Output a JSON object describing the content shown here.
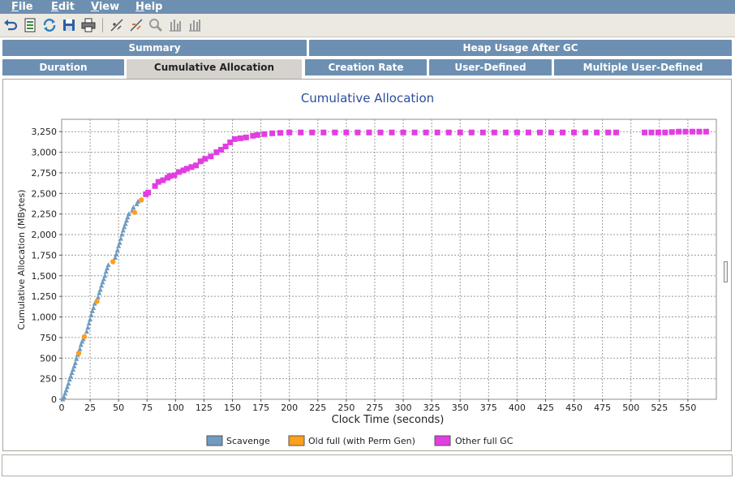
{
  "menu": [
    {
      "label": "File",
      "key": "F",
      "rest": "ile"
    },
    {
      "label": "Edit",
      "key": "E",
      "rest": "dit"
    },
    {
      "label": "View",
      "key": "V",
      "rest": "iew"
    },
    {
      "label": "Help",
      "key": "H",
      "rest": "elp"
    }
  ],
  "toolbar_icons": [
    "undo-icon",
    "export-icon",
    "refresh-icon",
    "save-icon",
    "print-icon",
    "zoom-in-tool-icon",
    "zoom-out-tool-icon",
    "magnifier-icon",
    "bar-chart-icon",
    "bar-chart-alt-icon"
  ],
  "tabs": {
    "row1": [
      "Summary",
      "Heap Usage After GC"
    ],
    "row2": [
      "Duration",
      "Cumulative Allocation",
      "Creation Rate",
      "User-Defined",
      "Multiple User-Defined"
    ],
    "active": "Cumulative Allocation"
  },
  "chart_data": {
    "type": "scatter",
    "title": "Cumulative Allocation",
    "xlabel": "Clock Time  (seconds)",
    "ylabel": "Cumulative Allocation (MBytes)",
    "xlim": [
      0,
      575
    ],
    "ylim": [
      0,
      3400
    ],
    "xticks": [
      0,
      25,
      50,
      75,
      100,
      125,
      150,
      175,
      200,
      225,
      250,
      275,
      300,
      325,
      350,
      375,
      400,
      425,
      450,
      475,
      500,
      525,
      550
    ],
    "yticks": [
      0,
      250,
      500,
      750,
      1000,
      1250,
      1500,
      1750,
      2000,
      2250,
      2500,
      2750,
      3000,
      3250
    ],
    "ytick_labels": [
      "0",
      "250",
      "500",
      "750",
      "1,000",
      "1,250",
      "1,500",
      "1,750",
      "2,000",
      "2,250",
      "2,500",
      "2,750",
      "3,000",
      "3,250"
    ],
    "grid": true,
    "legend_position": "bottom",
    "series": [
      {
        "name": "Scavenge",
        "color": "#6f9cc0",
        "marker": "triangle",
        "points": [
          [
            1,
            0
          ],
          [
            2,
            30
          ],
          [
            3,
            70
          ],
          [
            4,
            110
          ],
          [
            5,
            150
          ],
          [
            6,
            190
          ],
          [
            7,
            240
          ],
          [
            8,
            280
          ],
          [
            9,
            320
          ],
          [
            10,
            360
          ],
          [
            11,
            400
          ],
          [
            12,
            440
          ],
          [
            13,
            490
          ],
          [
            14,
            540
          ],
          [
            16,
            610
          ],
          [
            17,
            660
          ],
          [
            18,
            700
          ],
          [
            19,
            730
          ],
          [
            22,
            820
          ],
          [
            23,
            870
          ],
          [
            24,
            920
          ],
          [
            25,
            970
          ],
          [
            26,
            1020
          ],
          [
            27,
            1070
          ],
          [
            28,
            1110
          ],
          [
            29,
            1160
          ],
          [
            32,
            1240
          ],
          [
            33,
            1290
          ],
          [
            34,
            1330
          ],
          [
            35,
            1380
          ],
          [
            36,
            1420
          ],
          [
            37,
            1460
          ],
          [
            38,
            1500
          ],
          [
            39,
            1550
          ],
          [
            40,
            1590
          ],
          [
            41,
            1630
          ],
          [
            47,
            1720
          ],
          [
            48,
            1760
          ],
          [
            49,
            1810
          ],
          [
            50,
            1860
          ],
          [
            51,
            1900
          ],
          [
            52,
            1950
          ],
          [
            53,
            2000
          ],
          [
            54,
            2050
          ],
          [
            55,
            2090
          ],
          [
            56,
            2130
          ],
          [
            57,
            2170
          ],
          [
            58,
            2210
          ],
          [
            59,
            2250
          ],
          [
            62,
            2290
          ],
          [
            63,
            2330
          ],
          [
            66,
            2370
          ],
          [
            67,
            2400
          ]
        ]
      },
      {
        "name": "Old full (with Perm Gen)",
        "color": "#ff9f1a",
        "marker": "circle",
        "points": [
          [
            15,
            560
          ],
          [
            20,
            760
          ],
          [
            31,
            1190
          ],
          [
            45,
            1670
          ],
          [
            64,
            2270
          ],
          [
            70,
            2420
          ]
        ]
      },
      {
        "name": "Other full GC",
        "color": "#e13de1",
        "marker": "square",
        "points": [
          [
            74,
            2490
          ],
          [
            76,
            2510
          ],
          [
            82,
            2590
          ],
          [
            85,
            2640
          ],
          [
            89,
            2660
          ],
          [
            93,
            2690
          ],
          [
            95,
            2710
          ],
          [
            99,
            2720
          ],
          [
            103,
            2760
          ],
          [
            107,
            2780
          ],
          [
            110,
            2800
          ],
          [
            114,
            2820
          ],
          [
            118,
            2840
          ],
          [
            122,
            2890
          ],
          [
            126,
            2920
          ],
          [
            131,
            2950
          ],
          [
            136,
            3000
          ],
          [
            140,
            3030
          ],
          [
            144,
            3070
          ],
          [
            148,
            3120
          ],
          [
            152,
            3160
          ],
          [
            157,
            3170
          ],
          [
            162,
            3180
          ],
          [
            168,
            3200
          ],
          [
            172,
            3210
          ],
          [
            178,
            3220
          ],
          [
            185,
            3230
          ],
          [
            192,
            3235
          ],
          [
            200,
            3240
          ],
          [
            210,
            3240
          ],
          [
            220,
            3240
          ],
          [
            230,
            3240
          ],
          [
            240,
            3240
          ],
          [
            250,
            3240
          ],
          [
            260,
            3240
          ],
          [
            270,
            3240
          ],
          [
            280,
            3240
          ],
          [
            290,
            3240
          ],
          [
            300,
            3240
          ],
          [
            310,
            3240
          ],
          [
            320,
            3240
          ],
          [
            330,
            3240
          ],
          [
            340,
            3240
          ],
          [
            350,
            3240
          ],
          [
            360,
            3240
          ],
          [
            370,
            3240
          ],
          [
            380,
            3240
          ],
          [
            390,
            3240
          ],
          [
            400,
            3240
          ],
          [
            410,
            3240
          ],
          [
            420,
            3240
          ],
          [
            430,
            3240
          ],
          [
            440,
            3240
          ],
          [
            450,
            3240
          ],
          [
            460,
            3240
          ],
          [
            470,
            3240
          ],
          [
            480,
            3240
          ],
          [
            487,
            3240
          ],
          [
            512,
            3240
          ],
          [
            518,
            3240
          ],
          [
            524,
            3240
          ],
          [
            530,
            3240
          ],
          [
            536,
            3245
          ],
          [
            542,
            3250
          ],
          [
            548,
            3250
          ],
          [
            554,
            3250
          ],
          [
            560,
            3250
          ],
          [
            566,
            3250
          ]
        ]
      }
    ]
  }
}
